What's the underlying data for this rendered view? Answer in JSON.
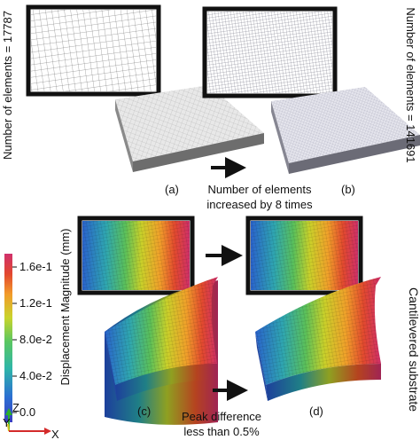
{
  "panels": {
    "a": {
      "label": "(a)",
      "elements_text": "Number of elements = 17787"
    },
    "b": {
      "label": "(b)",
      "elements_text": "Number of elements = 141691"
    },
    "c": {
      "label": "(c)"
    },
    "d": {
      "label": "(d)"
    }
  },
  "captions": {
    "refine_line1": "Number of elements",
    "refine_line2": "increased by 8 times",
    "peak_line1": "Peak difference",
    "peak_line2": "less than 0.5%",
    "side_label": "Cantilevered substrate"
  },
  "colorbar": {
    "title": "Displacement Magnitude (mm)",
    "ticks": [
      "1.6e-1",
      "1.2e-1",
      "8.0e-2",
      "4.0e-2",
      "0.0"
    ],
    "colors": [
      "#d0306c",
      "#e2472f",
      "#f29b2a",
      "#c9d42c",
      "#5bc760",
      "#2fb6a8",
      "#2b6fd2",
      "#3a3fc0"
    ]
  },
  "axes": {
    "z": "Z",
    "y": "Y",
    "x": "X"
  },
  "colors": {
    "mesh_gray": "#dcdcdc",
    "frame": "#111111",
    "axis_z": "#2bb02b",
    "axis_y": "#d8c21c",
    "axis_x": "#d42a2a"
  }
}
